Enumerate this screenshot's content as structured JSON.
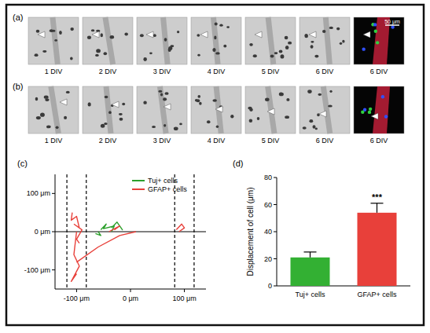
{
  "figure": {
    "panels": [
      {
        "label": "(a)",
        "frames": [
          "1 DIV",
          "2 DIV",
          "3 DIV",
          "4 DIV",
          "5 DIV",
          "6 DIV",
          "6 DIV"
        ],
        "scale_bar": "50 μm"
      },
      {
        "label": "(b)",
        "frames": [
          "1 DIV",
          "2 DIV",
          "3 DIV",
          "4 DIV",
          "5 DIV",
          "6 DIV",
          "6 DIV"
        ]
      }
    ],
    "chart_labels": [
      "(c)",
      "(d)"
    ]
  },
  "chart_data": [
    {
      "type": "line",
      "xlim": [
        -140,
        140
      ],
      "xticks": [
        {
          "value": -100,
          "label": "-100 μm"
        },
        {
          "value": 0,
          "label": "0 μm"
        },
        {
          "value": 100,
          "label": "100 μm"
        }
      ],
      "ylim": [
        -150,
        150
      ],
      "yticks": [
        {
          "value": -100,
          "label": "-100 μm"
        },
        {
          "value": 0,
          "label": "0 μm"
        },
        {
          "value": 100,
          "label": "100 μm"
        }
      ],
      "reference_lines": [
        -118,
        -82,
        82,
        118
      ],
      "legend": "top",
      "series": [
        {
          "name": "Tuj+ cells",
          "color": "#2ca02c",
          "x": [
            -55,
            -45,
            -50,
            -30,
            -35,
            null,
            -35,
            -25,
            -15,
            -20,
            null,
            -60,
            -55,
            -65
          ],
          "values": [
            5,
            20,
            8,
            15,
            0,
            null,
            10,
            25,
            5,
            15,
            null,
            0,
            -10,
            -5
          ]
        },
        {
          "name": "GFAP+ cells",
          "color": "#e8403a",
          "x": [
            -100,
            -105,
            -95,
            -110,
            -100,
            null,
            -95,
            -100,
            -110,
            -108,
            null,
            -100,
            -60,
            -20,
            10,
            null,
            -105,
            -90,
            -100,
            -95,
            null,
            85,
            95,
            100,
            90,
            null,
            -40,
            -20,
            -30
          ],
          "values": [
            0,
            -60,
            -90,
            -130,
            -110,
            null,
            10,
            40,
            30,
            50,
            null,
            -80,
            -40,
            -10,
            0,
            null,
            20,
            5,
            -20,
            -30,
            null,
            5,
            20,
            10,
            0,
            null,
            0,
            15,
            5
          ]
        }
      ]
    },
    {
      "type": "bar",
      "categories": [
        "Tuj+ cells",
        "GFAP+ cells"
      ],
      "values": [
        21,
        54
      ],
      "errors": [
        4,
        7
      ],
      "colors": [
        "#33b033",
        "#e8403a"
      ],
      "ylabel": "Displacement of cell (μm)",
      "ylim": [
        0,
        80
      ],
      "yticks": [
        0,
        20,
        40,
        60,
        80
      ],
      "significance": [
        null,
        "***"
      ]
    }
  ]
}
